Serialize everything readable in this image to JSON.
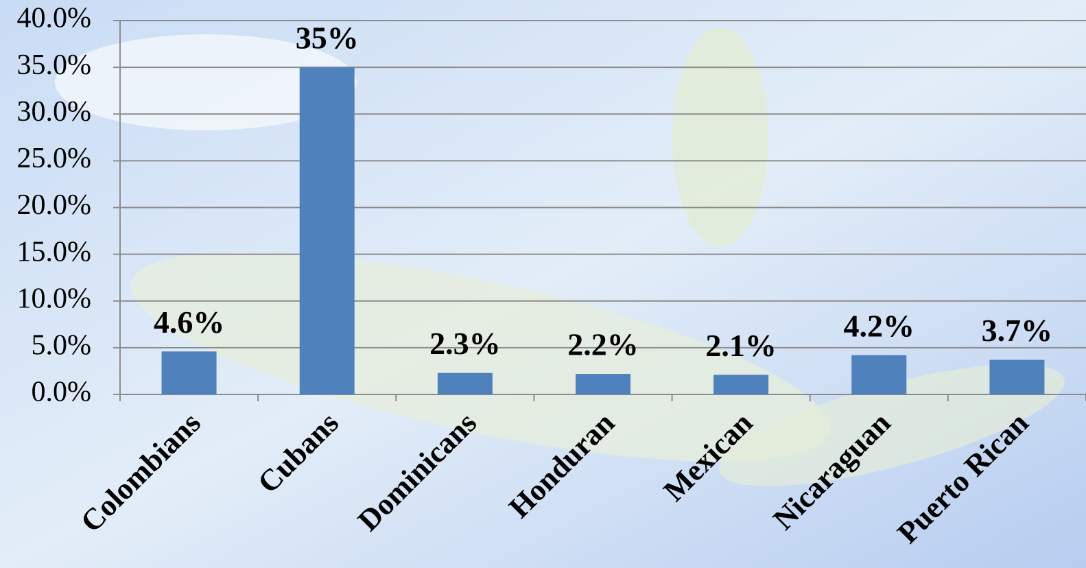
{
  "chart_data": {
    "type": "bar",
    "categories": [
      "Colombians",
      "Cubans",
      "Dominicans",
      "Honduran",
      "Mexican",
      "Nicaraguan",
      "Puerto Rican"
    ],
    "values": [
      4.6,
      35,
      2.3,
      2.2,
      2.1,
      4.2,
      3.7
    ],
    "value_labels": [
      "4.6%",
      "35%",
      "2.3%",
      "2.2%",
      "2.1%",
      "4.2%",
      "3.7%"
    ],
    "color": "#4f81bd",
    "ylim": [
      0,
      40
    ],
    "yticks": [
      {
        "value": 0,
        "label": "0.0%"
      },
      {
        "value": 5,
        "label": "5.0%"
      },
      {
        "value": 10,
        "label": "10.0%"
      },
      {
        "value": 15,
        "label": "15.0%"
      },
      {
        "value": 20,
        "label": "20.0%"
      },
      {
        "value": 25,
        "label": "25.0%"
      },
      {
        "value": 30,
        "label": "30.0%"
      },
      {
        "value": 35,
        "label": "35.0%"
      },
      {
        "value": 40,
        "label": "40.0%"
      }
    ],
    "grid": true
  }
}
